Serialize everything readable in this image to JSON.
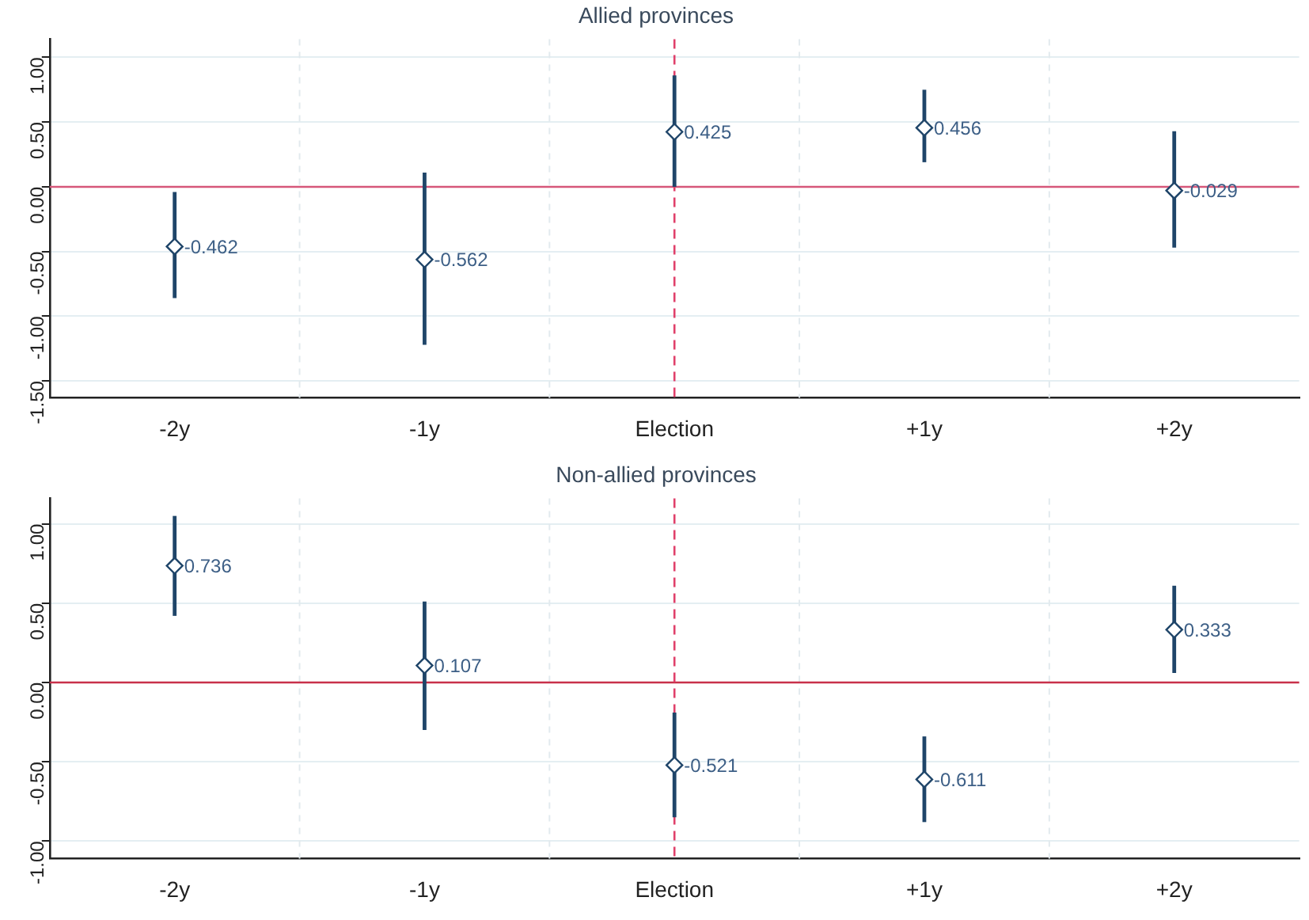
{
  "chart_data": [
    {
      "type": "scatter",
      "title": "Allied provinces",
      "categories": [
        "-2y",
        "-1y",
        "Election",
        "+1y",
        "+2y"
      ],
      "values": [
        -0.462,
        -0.562,
        0.425,
        0.456,
        -0.029
      ],
      "errors": [
        [
          -0.86,
          -0.04
        ],
        [
          -1.22,
          0.11
        ],
        [
          0.0,
          0.86
        ],
        [
          0.19,
          0.75
        ],
        [
          -0.47,
          0.43
        ]
      ],
      "color": "#1f4569",
      "marker": "diamond",
      "data_labels": true,
      "ylim": [
        -1.63,
        1.14
      ],
      "yticks": [
        {
          "value": -1.5,
          "label": "-1.50"
        },
        {
          "value": -1,
          "label": "-1.00"
        },
        {
          "value": -0.5,
          "label": "-0.50"
        },
        {
          "value": 0,
          "label": "0.00"
        },
        {
          "value": 0.5,
          "label": "0.50"
        },
        {
          "value": 1,
          "label": "1.00"
        }
      ],
      "grid": true,
      "ref_lines": [
        {
          "axis": "y",
          "value": 0,
          "color": "#d6577a",
          "line_style": "solid"
        },
        {
          "axis": "x",
          "value": "Election",
          "color": "#e0406a",
          "line_style": "dashed"
        }
      ]
    },
    {
      "type": "scatter",
      "title": "Non-allied provinces",
      "categories": [
        "-2y",
        "-1y",
        "Election",
        "+1y",
        "+2y"
      ],
      "values": [
        0.736,
        0.107,
        -0.521,
        -0.611,
        0.333
      ],
      "errors": [
        [
          0.42,
          1.05
        ],
        [
          -0.3,
          0.51
        ],
        [
          -0.85,
          -0.19
        ],
        [
          -0.88,
          -0.34
        ],
        [
          0.06,
          0.61
        ]
      ],
      "color": "#1f4569",
      "marker": "diamond",
      "data_labels": true,
      "ylim": [
        -1.11,
        1.16
      ],
      "yticks": [
        {
          "value": -1,
          "label": "-1.00"
        },
        {
          "value": -0.5,
          "label": "-0.50"
        },
        {
          "value": 0,
          "label": "0.00"
        },
        {
          "value": 0.5,
          "label": "0.50"
        },
        {
          "value": 1,
          "label": "1.00"
        }
      ],
      "grid": true,
      "ref_lines": [
        {
          "axis": "y",
          "value": 0,
          "color": "#c8304a",
          "line_style": "solid"
        },
        {
          "axis": "x",
          "value": "Election",
          "color": "#e0406a",
          "line_style": "dashed"
        }
      ]
    }
  ]
}
